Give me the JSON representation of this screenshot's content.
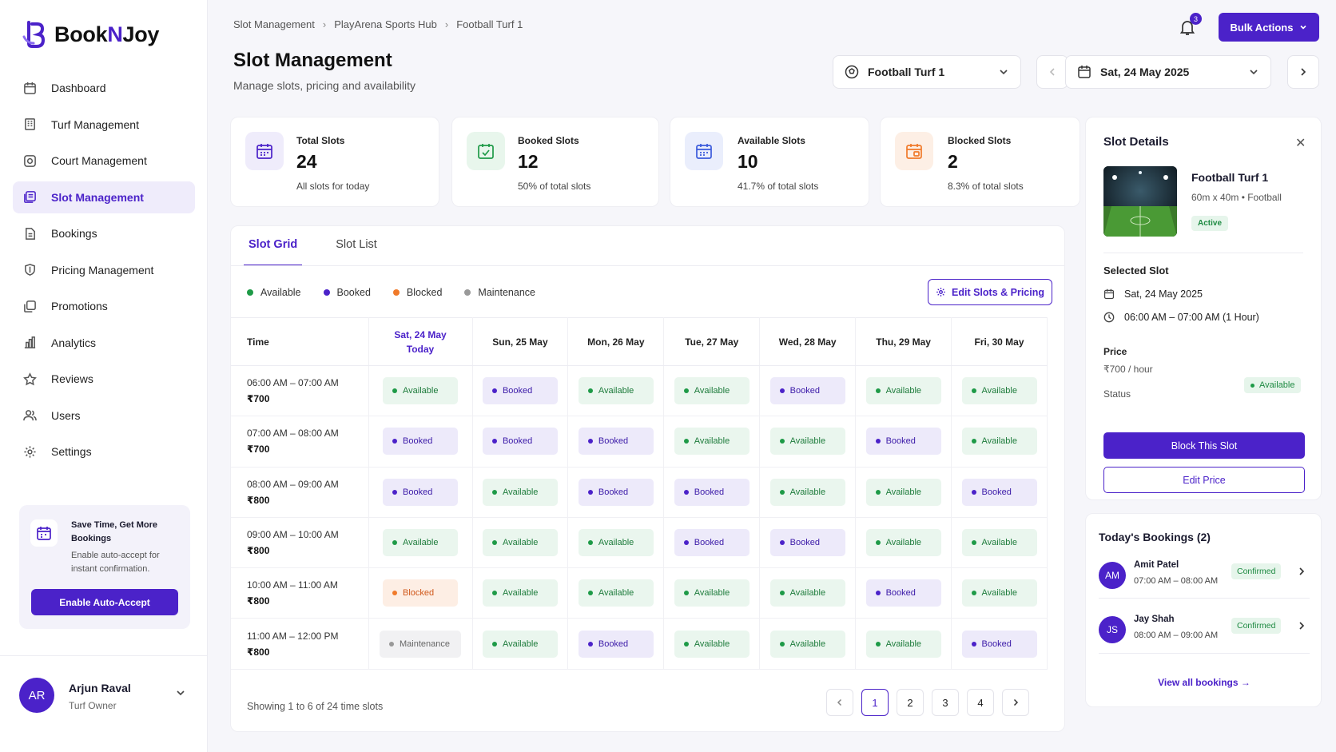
{
  "brand": {
    "name_part1": "Book",
    "name_part2": "N",
    "name_part3": "Joy",
    "accent": "#4b22c9"
  },
  "sidebar": {
    "items": [
      {
        "label": "Dashboard",
        "icon": "dashboard-icon",
        "active": false
      },
      {
        "label": "Turf Management",
        "icon": "building-icon",
        "active": false
      },
      {
        "label": "Court Management",
        "icon": "court-icon",
        "active": false
      },
      {
        "label": "Slot Management",
        "icon": "slots-icon",
        "active": true
      },
      {
        "label": "Bookings",
        "icon": "bookings-icon",
        "active": false
      },
      {
        "label": "Pricing Management",
        "icon": "pricing-icon",
        "active": false
      },
      {
        "label": "Promotions",
        "icon": "promotions-icon",
        "active": false
      },
      {
        "label": "Analytics",
        "icon": "analytics-icon",
        "active": false
      },
      {
        "label": "Reviews",
        "icon": "star-icon",
        "active": false
      },
      {
        "label": "Users",
        "icon": "users-icon",
        "active": false
      },
      {
        "label": "Settings",
        "icon": "gear-icon",
        "active": false
      }
    ],
    "promo": {
      "title": "Save Time, Get More Bookings",
      "desc": "Enable auto-accept for instant confirmation.",
      "button": "Enable Auto-Accept"
    },
    "user": {
      "initials": "AR",
      "name": "Arjun Raval",
      "role": "Turf Owner"
    }
  },
  "header": {
    "breadcrumb": [
      "Slot Management",
      "PlayArena Sports Hub",
      "Football Turf 1"
    ],
    "title": "Slot Management",
    "subtitle": "Manage slots, pricing and availability",
    "notifications": "3",
    "bulk_label": "Bulk Actions",
    "turf_select": "Football Turf 1",
    "date_select": "Sat, 24 May 2025"
  },
  "stats": [
    {
      "label": "Total Slots",
      "value": "24",
      "sub": "All slots for today",
      "color": "#4b22c9",
      "bg": "#efecfb"
    },
    {
      "label": "Booked Slots",
      "value": "12",
      "sub": "50% of total slots",
      "color": "#1e9a47",
      "bg": "#e8f6ec"
    },
    {
      "label": "Available Slots",
      "value": "10",
      "sub": "41.7% of total slots",
      "color": "#3b5bdb",
      "bg": "#eaeefc"
    },
    {
      "label": "Blocked Slots",
      "value": "2",
      "sub": "8.3% of total slots",
      "color": "#f07a2a",
      "bg": "#fdefe5"
    }
  ],
  "grid": {
    "tabs": [
      "Slot Grid",
      "Slot List"
    ],
    "legend": [
      {
        "label": "Available",
        "color": "#1e9a47"
      },
      {
        "label": "Booked",
        "color": "#4b22c9"
      },
      {
        "label": "Blocked",
        "color": "#f07a2a"
      },
      {
        "label": "Maintenance",
        "color": "#999999"
      }
    ],
    "edit_label": "Edit Slots & Pricing",
    "time_header": "Time",
    "days": [
      {
        "label": "Sat, 24 May",
        "today": "Today"
      },
      {
        "label": "Sun, 25 May"
      },
      {
        "label": "Mon, 26 May"
      },
      {
        "label": "Tue, 27 May"
      },
      {
        "label": "Wed, 28 May"
      },
      {
        "label": "Thu, 29 May"
      },
      {
        "label": "Fri, 30 May"
      }
    ],
    "rows": [
      {
        "time": "06:00 AM – 07:00 AM",
        "price": "₹700",
        "cells": [
          "Available",
          "Booked",
          "Available",
          "Available",
          "Booked",
          "Available",
          "Available"
        ]
      },
      {
        "time": "07:00 AM – 08:00 AM",
        "price": "₹700",
        "cells": [
          "Booked",
          "Booked",
          "Booked",
          "Available",
          "Available",
          "Booked",
          "Available"
        ]
      },
      {
        "time": "08:00 AM – 09:00 AM",
        "price": "₹800",
        "cells": [
          "Booked",
          "Available",
          "Booked",
          "Booked",
          "Available",
          "Available",
          "Booked"
        ]
      },
      {
        "time": "09:00 AM – 10:00 AM",
        "price": "₹800",
        "cells": [
          "Available",
          "Available",
          "Available",
          "Booked",
          "Booked",
          "Available",
          "Available"
        ]
      },
      {
        "time": "10:00 AM – 11:00 AM",
        "price": "₹800",
        "cells": [
          "Blocked",
          "Available",
          "Available",
          "Available",
          "Available",
          "Booked",
          "Available"
        ]
      },
      {
        "time": "11:00 AM – 12:00 PM",
        "price": "₹800",
        "cells": [
          "Maintenance",
          "Available",
          "Booked",
          "Available",
          "Available",
          "Available",
          "Booked"
        ]
      }
    ],
    "showing": "Showing 1 to 6 of 24 time slots",
    "pages": [
      "1",
      "2",
      "3",
      "4"
    ],
    "current_page": "1"
  },
  "details": {
    "title": "Slot Details",
    "turf_name": "Football Turf 1",
    "turf_meta": "60m x 40m • Football",
    "turf_status": "Active",
    "selected_heading": "Selected Slot",
    "selected_date": "Sat, 24 May 2025",
    "selected_time": "06:00 AM – 07:00 AM (1 Hour)",
    "price_heading": "Price",
    "price_value": "₹700 / hour",
    "status_heading": "Status",
    "status_value": "Available",
    "block_label": "Block This Slot",
    "edit_price_label": "Edit Price"
  },
  "bookings": {
    "title": "Today's Bookings (2)",
    "items": [
      {
        "initials": "AM",
        "name": "Amit Patel",
        "time": "07:00 AM – 08:00 AM",
        "status": "Confirmed"
      },
      {
        "initials": "JS",
        "name": "Jay Shah",
        "time": "08:00 AM – 09:00 AM",
        "status": "Confirmed"
      }
    ],
    "view_all": "View all bookings →"
  }
}
